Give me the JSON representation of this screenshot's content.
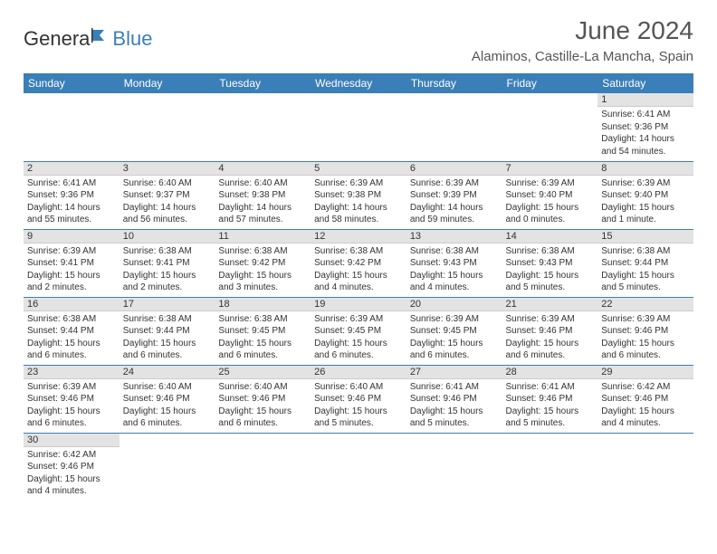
{
  "colors": {
    "header_bg": "#3b7fb8",
    "header_text": "#ffffff",
    "daynum_bg": "#e3e3e3",
    "row_border": "#3b7fb8",
    "body_text": "#333333",
    "title_text": "#555555",
    "logo_blue": "#3b7fb8"
  },
  "logo": {
    "part1": "Genera",
    "part2": "Blue"
  },
  "title": "June 2024",
  "location": "Alaminos, Castille-La Mancha, Spain",
  "day_headers": [
    "Sunday",
    "Monday",
    "Tuesday",
    "Wednesday",
    "Thursday",
    "Friday",
    "Saturday"
  ],
  "weeks": [
    [
      null,
      null,
      null,
      null,
      null,
      null,
      {
        "n": "1",
        "sr": "Sunrise: 6:41 AM",
        "ss": "Sunset: 9:36 PM",
        "dl1": "Daylight: 14 hours",
        "dl2": "and 54 minutes."
      }
    ],
    [
      {
        "n": "2",
        "sr": "Sunrise: 6:41 AM",
        "ss": "Sunset: 9:36 PM",
        "dl1": "Daylight: 14 hours",
        "dl2": "and 55 minutes."
      },
      {
        "n": "3",
        "sr": "Sunrise: 6:40 AM",
        "ss": "Sunset: 9:37 PM",
        "dl1": "Daylight: 14 hours",
        "dl2": "and 56 minutes."
      },
      {
        "n": "4",
        "sr": "Sunrise: 6:40 AM",
        "ss": "Sunset: 9:38 PM",
        "dl1": "Daylight: 14 hours",
        "dl2": "and 57 minutes."
      },
      {
        "n": "5",
        "sr": "Sunrise: 6:39 AM",
        "ss": "Sunset: 9:38 PM",
        "dl1": "Daylight: 14 hours",
        "dl2": "and 58 minutes."
      },
      {
        "n": "6",
        "sr": "Sunrise: 6:39 AM",
        "ss": "Sunset: 9:39 PM",
        "dl1": "Daylight: 14 hours",
        "dl2": "and 59 minutes."
      },
      {
        "n": "7",
        "sr": "Sunrise: 6:39 AM",
        "ss": "Sunset: 9:40 PM",
        "dl1": "Daylight: 15 hours",
        "dl2": "and 0 minutes."
      },
      {
        "n": "8",
        "sr": "Sunrise: 6:39 AM",
        "ss": "Sunset: 9:40 PM",
        "dl1": "Daylight: 15 hours",
        "dl2": "and 1 minute."
      }
    ],
    [
      {
        "n": "9",
        "sr": "Sunrise: 6:39 AM",
        "ss": "Sunset: 9:41 PM",
        "dl1": "Daylight: 15 hours",
        "dl2": "and 2 minutes."
      },
      {
        "n": "10",
        "sr": "Sunrise: 6:38 AM",
        "ss": "Sunset: 9:41 PM",
        "dl1": "Daylight: 15 hours",
        "dl2": "and 2 minutes."
      },
      {
        "n": "11",
        "sr": "Sunrise: 6:38 AM",
        "ss": "Sunset: 9:42 PM",
        "dl1": "Daylight: 15 hours",
        "dl2": "and 3 minutes."
      },
      {
        "n": "12",
        "sr": "Sunrise: 6:38 AM",
        "ss": "Sunset: 9:42 PM",
        "dl1": "Daylight: 15 hours",
        "dl2": "and 4 minutes."
      },
      {
        "n": "13",
        "sr": "Sunrise: 6:38 AM",
        "ss": "Sunset: 9:43 PM",
        "dl1": "Daylight: 15 hours",
        "dl2": "and 4 minutes."
      },
      {
        "n": "14",
        "sr": "Sunrise: 6:38 AM",
        "ss": "Sunset: 9:43 PM",
        "dl1": "Daylight: 15 hours",
        "dl2": "and 5 minutes."
      },
      {
        "n": "15",
        "sr": "Sunrise: 6:38 AM",
        "ss": "Sunset: 9:44 PM",
        "dl1": "Daylight: 15 hours",
        "dl2": "and 5 minutes."
      }
    ],
    [
      {
        "n": "16",
        "sr": "Sunrise: 6:38 AM",
        "ss": "Sunset: 9:44 PM",
        "dl1": "Daylight: 15 hours",
        "dl2": "and 6 minutes."
      },
      {
        "n": "17",
        "sr": "Sunrise: 6:38 AM",
        "ss": "Sunset: 9:44 PM",
        "dl1": "Daylight: 15 hours",
        "dl2": "and 6 minutes."
      },
      {
        "n": "18",
        "sr": "Sunrise: 6:38 AM",
        "ss": "Sunset: 9:45 PM",
        "dl1": "Daylight: 15 hours",
        "dl2": "and 6 minutes."
      },
      {
        "n": "19",
        "sr": "Sunrise: 6:39 AM",
        "ss": "Sunset: 9:45 PM",
        "dl1": "Daylight: 15 hours",
        "dl2": "and 6 minutes."
      },
      {
        "n": "20",
        "sr": "Sunrise: 6:39 AM",
        "ss": "Sunset: 9:45 PM",
        "dl1": "Daylight: 15 hours",
        "dl2": "and 6 minutes."
      },
      {
        "n": "21",
        "sr": "Sunrise: 6:39 AM",
        "ss": "Sunset: 9:46 PM",
        "dl1": "Daylight: 15 hours",
        "dl2": "and 6 minutes."
      },
      {
        "n": "22",
        "sr": "Sunrise: 6:39 AM",
        "ss": "Sunset: 9:46 PM",
        "dl1": "Daylight: 15 hours",
        "dl2": "and 6 minutes."
      }
    ],
    [
      {
        "n": "23",
        "sr": "Sunrise: 6:39 AM",
        "ss": "Sunset: 9:46 PM",
        "dl1": "Daylight: 15 hours",
        "dl2": "and 6 minutes."
      },
      {
        "n": "24",
        "sr": "Sunrise: 6:40 AM",
        "ss": "Sunset: 9:46 PM",
        "dl1": "Daylight: 15 hours",
        "dl2": "and 6 minutes."
      },
      {
        "n": "25",
        "sr": "Sunrise: 6:40 AM",
        "ss": "Sunset: 9:46 PM",
        "dl1": "Daylight: 15 hours",
        "dl2": "and 6 minutes."
      },
      {
        "n": "26",
        "sr": "Sunrise: 6:40 AM",
        "ss": "Sunset: 9:46 PM",
        "dl1": "Daylight: 15 hours",
        "dl2": "and 5 minutes."
      },
      {
        "n": "27",
        "sr": "Sunrise: 6:41 AM",
        "ss": "Sunset: 9:46 PM",
        "dl1": "Daylight: 15 hours",
        "dl2": "and 5 minutes."
      },
      {
        "n": "28",
        "sr": "Sunrise: 6:41 AM",
        "ss": "Sunset: 9:46 PM",
        "dl1": "Daylight: 15 hours",
        "dl2": "and 5 minutes."
      },
      {
        "n": "29",
        "sr": "Sunrise: 6:42 AM",
        "ss": "Sunset: 9:46 PM",
        "dl1": "Daylight: 15 hours",
        "dl2": "and 4 minutes."
      }
    ],
    [
      {
        "n": "30",
        "sr": "Sunrise: 6:42 AM",
        "ss": "Sunset: 9:46 PM",
        "dl1": "Daylight: 15 hours",
        "dl2": "and 4 minutes."
      },
      null,
      null,
      null,
      null,
      null,
      null
    ]
  ]
}
